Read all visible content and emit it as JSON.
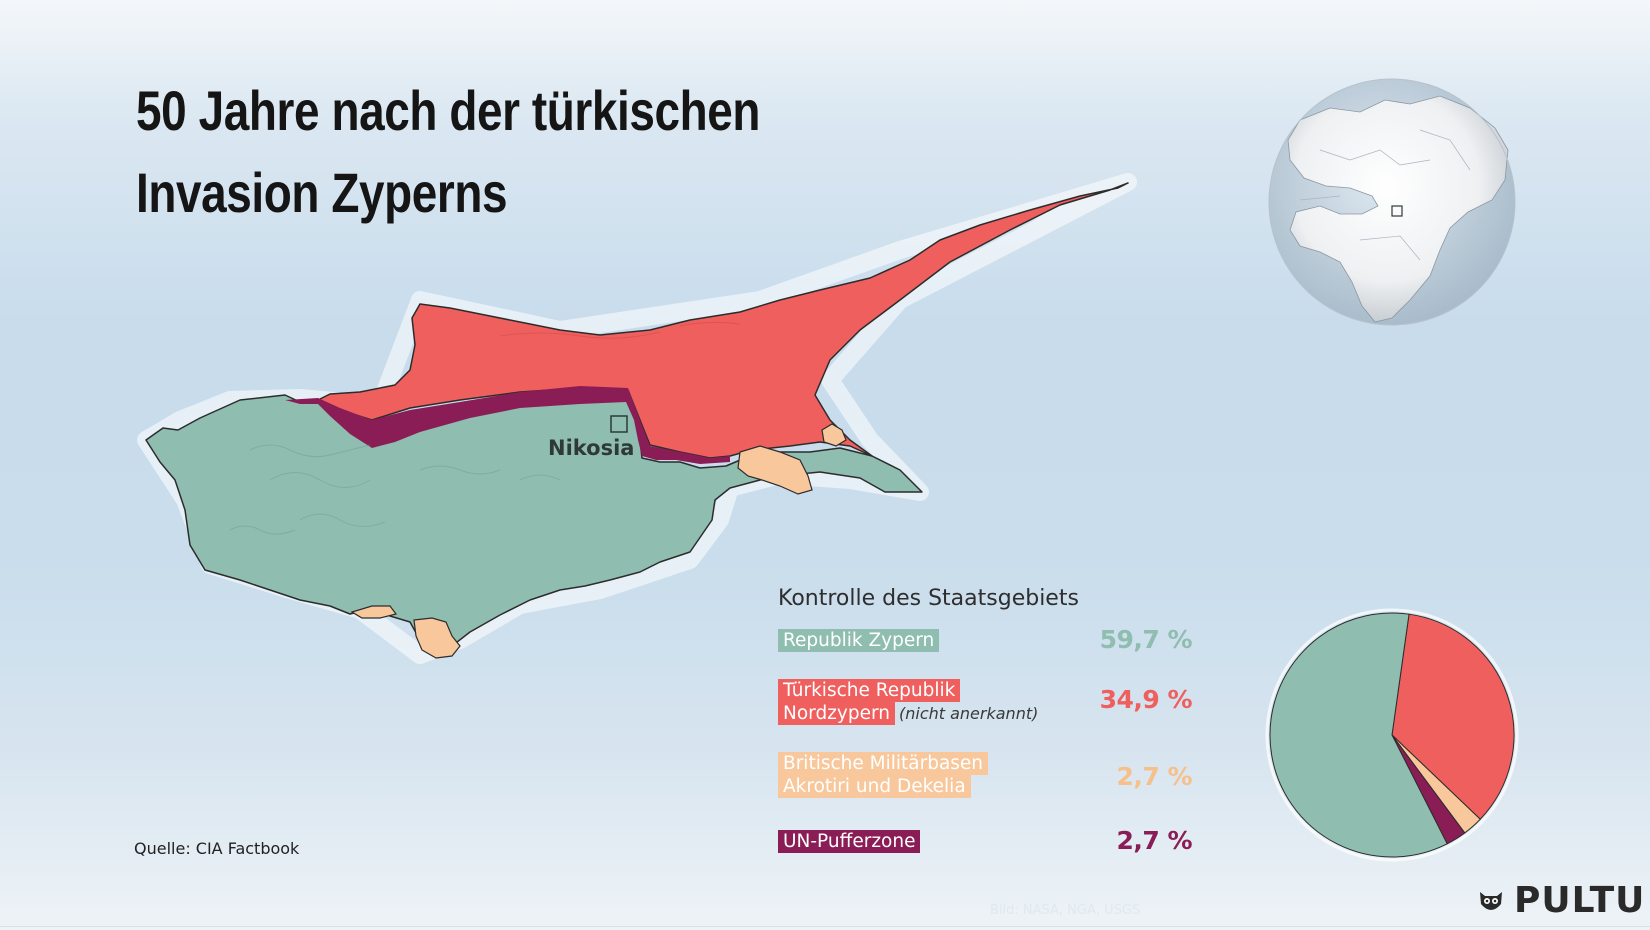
{
  "title": [
    "50 Jahre nach der türkischen",
    "Invasion Zyperns"
  ],
  "map_label": "Nikosia",
  "legend": {
    "title": "Kontrolle des Staatsgebiets",
    "items": [
      {
        "lines": [
          "Republik Zypern"
        ],
        "note": "",
        "value": "59,7 %",
        "share": 59.7,
        "color": "#8fbdb0"
      },
      {
        "lines": [
          "Türkische Republik",
          "Nordzypern"
        ],
        "note": "(nicht anerkannt)",
        "value": "34,9 %",
        "share": 34.9,
        "color": "#ef5f5e"
      },
      {
        "lines": [
          "Britische Militärbasen",
          "Akrotiri und Dekelia"
        ],
        "note": "",
        "value": "2,7 %",
        "share": 2.7,
        "color": "#f8c89c"
      },
      {
        "lines": [
          "UN-Pufferzone"
        ],
        "note": "",
        "value": "2,7 %",
        "share": 2.7,
        "color": "#8a1d55"
      }
    ]
  },
  "source": "Quelle: CIA Factbook",
  "credit": "Bild: NASA, NGA, USGS",
  "brand": "PULTU",
  "icons": {
    "globe": "globe-locator-icon",
    "logo": "owl-logo-icon"
  },
  "colors": {
    "sea": "#c8dcec",
    "title": "#151515",
    "pct_british": "#f6c08c"
  }
}
